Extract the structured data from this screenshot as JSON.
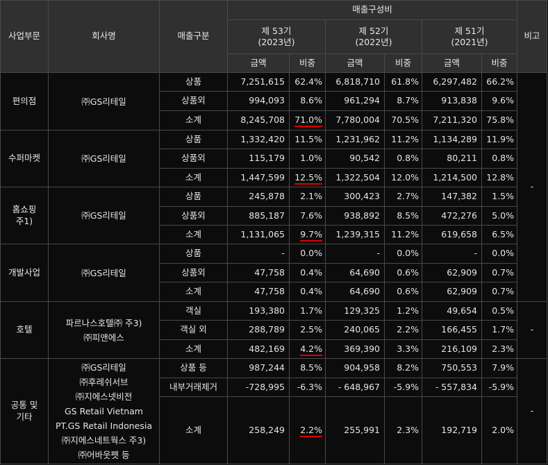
{
  "header": {
    "segment": "사업부문",
    "company": "회사명",
    "sales_type": "매출구분",
    "composition": "매출구성비",
    "remarks": "비고",
    "periods": [
      {
        "label": "제 53기",
        "year": "(2023년)"
      },
      {
        "label": "제 52기",
        "year": "(2022년)"
      },
      {
        "label": "제 51기",
        "year": "(2021년)"
      }
    ],
    "amount": "금액",
    "ratio": "비중"
  },
  "groups": [
    {
      "segment": "편의점",
      "companies": [
        "㈜GS리테일"
      ],
      "rows": [
        {
          "type": "상품",
          "v": [
            "7,251,615",
            "62.4%",
            "6,818,710",
            "61.8%",
            "6,297,482",
            "66.2%"
          ]
        },
        {
          "type": "상품외",
          "v": [
            "994,093",
            "8.6%",
            "961,294",
            "8.7%",
            "913,838",
            "9.6%"
          ]
        },
        {
          "type": "소계",
          "v": [
            "8,245,708",
            "71.0%",
            "7,780,004",
            "70.5%",
            "7,211,320",
            "75.8%"
          ]
        }
      ]
    },
    {
      "segment": "수퍼마켓",
      "companies": [
        "㈜GS리테일"
      ],
      "rows": [
        {
          "type": "상품",
          "v": [
            "1,332,420",
            "11.5%",
            "1,231,962",
            "11.2%",
            "1,134,289",
            "11.9%"
          ]
        },
        {
          "type": "상품외",
          "v": [
            "115,179",
            "1.0%",
            "90,542",
            "0.8%",
            "80,211",
            "0.8%"
          ]
        },
        {
          "type": "소계",
          "v": [
            "1,447,599",
            "12.5%",
            "1,322,504",
            "12.0%",
            "1,214,500",
            "12.8%"
          ]
        }
      ]
    },
    {
      "segment": "홈쇼핑",
      "segment_note": "주1)",
      "companies": [
        "㈜GS리테일"
      ],
      "rows": [
        {
          "type": "상품",
          "v": [
            "245,878",
            "2.1%",
            "300,423",
            "2.7%",
            "147,382",
            "1.5%"
          ]
        },
        {
          "type": "상품외",
          "v": [
            "885,187",
            "7.6%",
            "938,892",
            "8.5%",
            "472,276",
            "5.0%"
          ]
        },
        {
          "type": "소계",
          "v": [
            "1,131,065",
            "9.7%",
            "1,239,315",
            "11.2%",
            "619,658",
            "6.5%"
          ]
        }
      ]
    },
    {
      "segment": "개발사업",
      "companies": [
        "㈜GS리테일"
      ],
      "rows": [
        {
          "type": "상품",
          "v": [
            "-",
            "0.0%",
            "-",
            "0.0%",
            "-",
            "0.0%"
          ]
        },
        {
          "type": "상품외",
          "v": [
            "47,758",
            "0.4%",
            "64,690",
            "0.6%",
            "62,909",
            "0.7%"
          ]
        },
        {
          "type": "소계",
          "v": [
            "47,758",
            "0.4%",
            "64,690",
            "0.6%",
            "62,909",
            "0.7%"
          ]
        }
      ]
    },
    {
      "segment": "호텔",
      "companies": [
        "파르나스호텔㈜ 주3)",
        "㈜피앤에스"
      ],
      "rows": [
        {
          "type": "객실",
          "v": [
            "193,380",
            "1.7%",
            "129,325",
            "1.2%",
            "49,654",
            "0.5%"
          ]
        },
        {
          "type": "객실 외",
          "v": [
            "288,789",
            "2.5%",
            "240,065",
            "2.2%",
            "166,455",
            "1.7%"
          ]
        },
        {
          "type": "소계",
          "v": [
            "482,169",
            "4.2%",
            "369,390",
            "3.3%",
            "216,109",
            "2.3%"
          ]
        }
      ]
    },
    {
      "segment": "공통 및",
      "segment_note": "기타",
      "companies": [
        "㈜GS리테일",
        "㈜후레쉬서브",
        "㈜지에스넷비전",
        "GS Retail Vietnam",
        "PT.GS Retail Indonesia",
        "㈜지에스네트웍스  주3)",
        "㈜어바웃펫 등"
      ],
      "rows": [
        {
          "type": "상품 등",
          "v": [
            "987,244",
            "8.5%",
            "904,958",
            "8.2%",
            "750,553",
            "7.9%"
          ]
        },
        {
          "type": "내부거래제거",
          "v": [
            "-728,995",
            "-6.3%",
            "- 648,967",
            "-5.9%",
            "- 557,834",
            "-5.9%"
          ]
        },
        {
          "type": "소계",
          "v": [
            "258,249",
            "2.2%",
            "255,991",
            "2.3%",
            "192,719",
            "2.0%"
          ]
        }
      ]
    }
  ],
  "remarks_values": [
    "-",
    "-",
    "-"
  ],
  "colors": {
    "background": "#0c0c0c",
    "header_bg": "#303030",
    "border": "#4a4a4a",
    "text": "#e6e6e6",
    "underline": "#e00000"
  }
}
